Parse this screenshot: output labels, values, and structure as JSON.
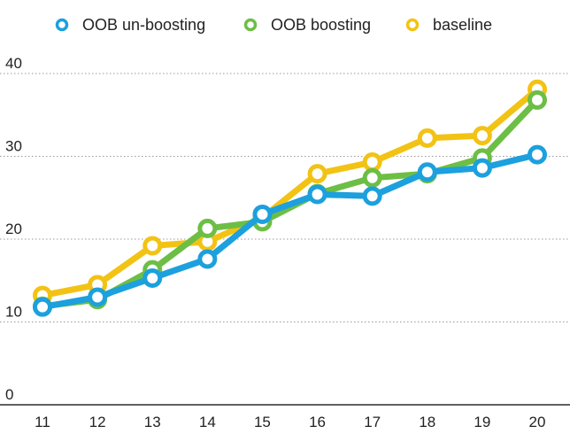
{
  "chart_data": {
    "type": "line",
    "title": "",
    "xlabel": "",
    "ylabel": "",
    "x": [
      11,
      12,
      13,
      14,
      15,
      16,
      17,
      18,
      19,
      20
    ],
    "x_tick_labels": [
      "11",
      "12",
      "13",
      "14",
      "15",
      "16",
      "17",
      "18",
      "19",
      "20"
    ],
    "ylim": [
      0,
      40
    ],
    "y_ticks": [
      0,
      10,
      20,
      30,
      40
    ],
    "y_tick_labels": [
      "0",
      "10",
      "20",
      "30",
      "40"
    ],
    "grid": "horizontal dotted",
    "legend_position": "top",
    "series": [
      {
        "name": "baseline",
        "color": "#F2C314",
        "values": [
          13.2,
          14.5,
          19.2,
          19.7,
          22.6,
          27.9,
          29.3,
          32.2,
          32.5,
          38.1
        ]
      },
      {
        "name": "OOB boosting",
        "color": "#6DBE45",
        "values": [
          11.9,
          12.7,
          16.3,
          21.3,
          22.1,
          25.5,
          27.4,
          27.9,
          29.8,
          36.8
        ]
      },
      {
        "name": "OOB un-boosting",
        "color": "#1CA0DE",
        "values": [
          11.8,
          13.0,
          15.3,
          17.6,
          23.0,
          25.4,
          25.2,
          28.1,
          28.6,
          30.2
        ]
      }
    ],
    "legend_order": [
      "OOB un-boosting",
      "OOB boosting",
      "baseline"
    ]
  }
}
